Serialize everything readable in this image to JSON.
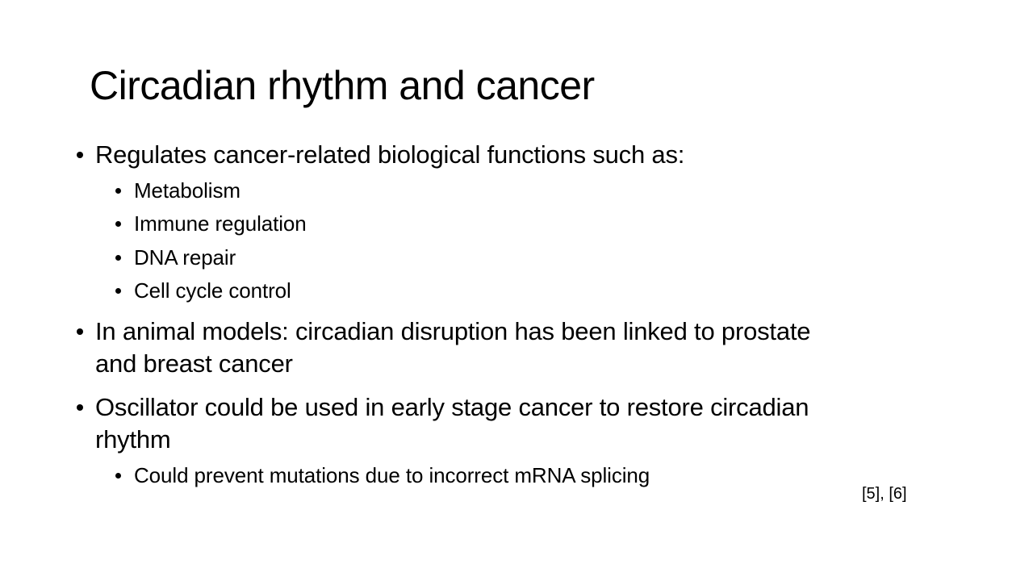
{
  "slide": {
    "title": "Circadian rhythm and cancer",
    "bullets": [
      {
        "text": "Regulates cancer-related biological functions such as:",
        "sub": [
          "Metabolism",
          "Immune regulation",
          "DNA repair",
          "Cell cycle control"
        ]
      },
      {
        "lines": [
          "In animal models: circadian disruption has been linked to prostate",
          "and breast cancer"
        ]
      },
      {
        "lines": [
          "Oscillator could be used in early stage cancer to restore circadian",
          "rhythm"
        ],
        "sub": [
          "Could prevent mutations due to incorrect mRNA splicing"
        ]
      }
    ],
    "citation": "[5], [6]"
  }
}
